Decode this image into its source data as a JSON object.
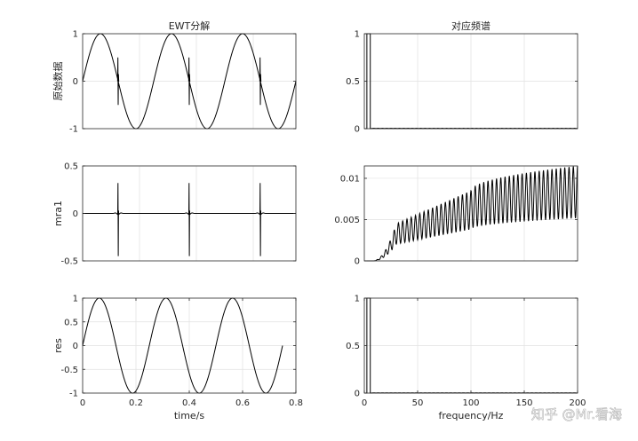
{
  "figure": {
    "watermark": "知乎 @Mr.看海"
  },
  "chart_data": [
    {
      "id": "orig",
      "type": "line",
      "title": "EWT分解",
      "xlabel": "",
      "ylabel": "原始数据",
      "xlim": [
        0,
        0.75
      ],
      "ylim": [
        -1,
        1
      ],
      "xticks": [],
      "xticklabels": [],
      "yticks": [
        -1,
        0,
        1
      ],
      "yticklabels": [
        "-1",
        "0",
        "1"
      ],
      "grid": true,
      "series": [
        {
          "signal": "sine_plus_spikes",
          "frequency_hz": 4,
          "amplitude": 1,
          "spike_times": [
            0.125,
            0.375,
            0.625
          ],
          "spike_amplitude": 0.5,
          "x_end": 0.75
        }
      ]
    },
    {
      "id": "spec1",
      "type": "line",
      "title": "对应频谱",
      "xlabel": "",
      "ylabel": "",
      "xlim": [
        0,
        200
      ],
      "ylim": [
        0,
        1
      ],
      "xticks": [],
      "xticklabels": [],
      "yticks": [
        0,
        0.5,
        1
      ],
      "yticklabels": [
        "0",
        "0.5",
        "1"
      ],
      "grid": true,
      "series": [
        {
          "signal": "spectrum_peak",
          "peak_x": 4,
          "peak_value": 1,
          "floor_value": 0.003
        }
      ]
    },
    {
      "id": "mra",
      "type": "line",
      "title": "",
      "xlabel": "",
      "ylabel": "mra1",
      "xlim": [
        0,
        0.75
      ],
      "ylim": [
        -0.5,
        0.5
      ],
      "xticks": [],
      "xticklabels": [],
      "yticks": [
        -0.5,
        0,
        0.5
      ],
      "yticklabels": [
        "-0.5",
        "0",
        "0.5"
      ],
      "grid": true,
      "series": [
        {
          "signal": "spikes",
          "spike_times": [
            0.125,
            0.375,
            0.625
          ],
          "spike_amplitude": 0.32,
          "spike_min": -0.45,
          "x_end": 0.75
        }
      ]
    },
    {
      "id": "spec2",
      "type": "line",
      "title": "",
      "xlabel": "",
      "ylabel": "",
      "xlim": [
        0,
        200
      ],
      "ylim": [
        0,
        0.0115
      ],
      "xticks": [],
      "xticklabels": [],
      "yticks": [
        0,
        0.005,
        0.01
      ],
      "yticklabels": [
        "0",
        "0.005",
        "0.01"
      ],
      "grid": true,
      "series": [
        {
          "signal": "oscillating_envelope",
          "period_hz": 4,
          "onset_hz": 8,
          "envelope_at_30": 0.0045,
          "envelope_at_100": 0.0085,
          "envelope_at_200": 0.0115
        }
      ]
    },
    {
      "id": "res",
      "type": "line",
      "title": "",
      "xlabel": "time/s",
      "ylabel": "res",
      "xlim": [
        0,
        0.8
      ],
      "ylim": [
        -1,
        1
      ],
      "xticks": [
        0,
        0.2,
        0.4,
        0.6,
        0.8
      ],
      "xticklabels": [
        "0",
        "0.2",
        "0.4",
        "0.6",
        "0.8"
      ],
      "yticks": [
        -1,
        -0.5,
        0,
        0.5,
        1
      ],
      "yticklabels": [
        "-1",
        "-0.5",
        "0",
        "0.5",
        "1"
      ],
      "grid": true,
      "series": [
        {
          "signal": "sine",
          "frequency_hz": 4,
          "amplitude": 1,
          "x_end": 0.75
        }
      ]
    },
    {
      "id": "spec3",
      "type": "line",
      "title": "",
      "xlabel": "frequency/Hz",
      "ylabel": "",
      "xlim": [
        0,
        200
      ],
      "ylim": [
        0,
        1
      ],
      "xticks": [
        0,
        50,
        100,
        150,
        200
      ],
      "xticklabels": [
        "0",
        "50",
        "100",
        "150",
        "200"
      ],
      "yticks": [
        0,
        0.5,
        1
      ],
      "yticklabels": [
        "0",
        "0.5",
        "1"
      ],
      "grid": true,
      "series": [
        {
          "signal": "spectrum_peak",
          "peak_x": 4,
          "peak_value": 1,
          "floor_value": 0.002
        }
      ]
    }
  ]
}
